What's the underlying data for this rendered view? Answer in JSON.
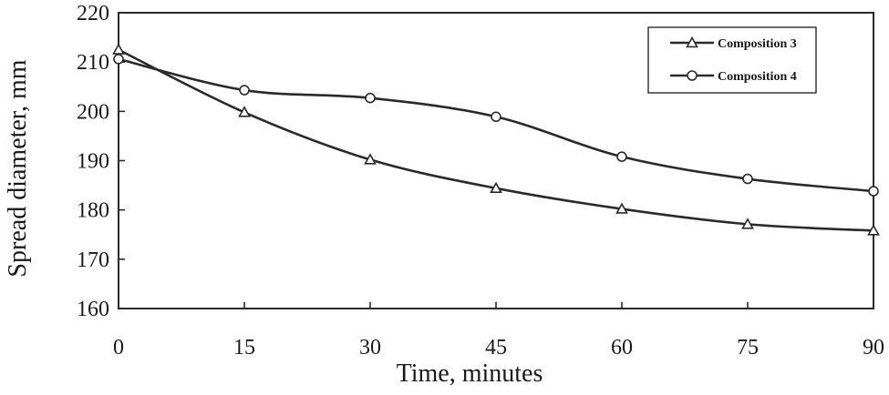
{
  "chart_data": {
    "type": "line",
    "xlabel": "Time, minutes",
    "ylabel": "Spread diameter, mm",
    "xlim": [
      0,
      90
    ],
    "ylim": [
      160,
      220
    ],
    "xticks": [
      0,
      15,
      30,
      45,
      60,
      75,
      90
    ],
    "yticks": [
      160,
      170,
      180,
      190,
      200,
      210,
      220
    ],
    "grid": false,
    "legend_position": "top-right",
    "x": [
      0,
      15,
      30,
      45,
      60,
      75,
      90
    ],
    "series": [
      {
        "name": "Composition 3",
        "marker": "triangle",
        "values": [
          212.5,
          199.8,
          190.2,
          184.4,
          180.2,
          177.1,
          175.8
        ]
      },
      {
        "name": "Composition 4",
        "marker": "circle",
        "values": [
          210.6,
          204.3,
          202.7,
          198.9,
          190.8,
          186.3,
          183.8
        ]
      }
    ]
  }
}
